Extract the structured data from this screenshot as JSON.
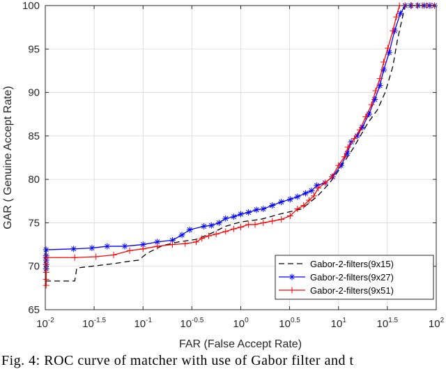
{
  "chart_data": {
    "type": "line",
    "title": "",
    "xlabel": "FAR (False Accept Rate)",
    "ylabel": "GAR ( Genuine Accept Rate)",
    "xscale": "log",
    "xlim": [
      0.01,
      100
    ],
    "ylim": [
      65,
      100
    ],
    "grid": true,
    "legend_position": "bottom-right",
    "x_ticks": [
      {
        "value": 0.01,
        "base": "10",
        "exp": "-2"
      },
      {
        "value": 0.0316,
        "base": "10",
        "exp": "-1.5"
      },
      {
        "value": 0.1,
        "base": "10",
        "exp": "-1"
      },
      {
        "value": 0.316,
        "base": "10",
        "exp": "-0.5"
      },
      {
        "value": 1,
        "base": "10",
        "exp": "0"
      },
      {
        "value": 3.16,
        "base": "10",
        "exp": "0.5"
      },
      {
        "value": 10,
        "base": "10",
        "exp": "1"
      },
      {
        "value": 31.6,
        "base": "10",
        "exp": "1.5"
      },
      {
        "value": 100,
        "base": "10",
        "exp": "2"
      }
    ],
    "y_ticks": [
      "65",
      "70",
      "75",
      "80",
      "85",
      "90",
      "95",
      "100"
    ],
    "series": [
      {
        "name": "Gabor-2-filters(9x15)",
        "color": "#000000",
        "style": "dashed",
        "marker": "none",
        "points": [
          [
            0.01,
            68.3
          ],
          [
            0.02,
            68.3
          ],
          [
            0.021,
            69.8
          ],
          [
            0.05,
            70.3
          ],
          [
            0.075,
            70.6
          ],
          [
            0.09,
            70.7
          ],
          [
            0.11,
            71.5
          ],
          [
            0.16,
            72.4
          ],
          [
            0.23,
            72.8
          ],
          [
            0.35,
            73.1
          ],
          [
            0.5,
            73.8
          ],
          [
            0.7,
            74.6
          ],
          [
            1.0,
            75.1
          ],
          [
            1.6,
            75.4
          ],
          [
            2.5,
            76.0
          ],
          [
            4.2,
            76.6
          ],
          [
            6.0,
            78.0
          ],
          [
            8.0,
            79.5
          ],
          [
            10.0,
            81.0
          ],
          [
            14.0,
            83.5
          ],
          [
            20.0,
            86.5
          ],
          [
            25.0,
            88.0
          ],
          [
            30.0,
            90.0
          ],
          [
            36.0,
            93.0
          ],
          [
            40.0,
            96.0
          ],
          [
            48.0,
            100.0
          ],
          [
            100.0,
            100.0
          ]
        ]
      },
      {
        "name": "Gabor-2-filters(9x27)",
        "color": "#0000ff",
        "style": "solid",
        "marker": "star",
        "points": [
          [
            0.0102,
            69.7
          ],
          [
            0.0102,
            70.2
          ],
          [
            0.0102,
            70.7
          ],
          [
            0.0102,
            71.2
          ],
          [
            0.0102,
            71.9
          ],
          [
            0.0195,
            72.0
          ],
          [
            0.03,
            72.1
          ],
          [
            0.043,
            72.3
          ],
          [
            0.065,
            72.3
          ],
          [
            0.1,
            72.5
          ],
          [
            0.14,
            72.8
          ],
          [
            0.2,
            73.0
          ],
          [
            0.25,
            73.6
          ],
          [
            0.3,
            74.2
          ],
          [
            0.42,
            74.6
          ],
          [
            0.5,
            74.7
          ],
          [
            0.6,
            75.0
          ],
          [
            0.7,
            75.5
          ],
          [
            0.85,
            75.7
          ],
          [
            1.0,
            76.0
          ],
          [
            1.2,
            76.2
          ],
          [
            1.45,
            76.5
          ],
          [
            1.7,
            76.6
          ],
          [
            2.1,
            77.0
          ],
          [
            2.6,
            77.4
          ],
          [
            3.2,
            77.7
          ],
          [
            3.8,
            78.0
          ],
          [
            4.6,
            78.4
          ],
          [
            5.3,
            78.7
          ],
          [
            6.0,
            79.3
          ],
          [
            7.3,
            79.6
          ],
          [
            8.7,
            80.3
          ],
          [
            10.6,
            81.6
          ],
          [
            12.3,
            83.0
          ],
          [
            13.5,
            84.3
          ],
          [
            15.5,
            85.0
          ],
          [
            17.5,
            86.0
          ],
          [
            20.5,
            87.5
          ],
          [
            23.5,
            89.2
          ],
          [
            26.5,
            90.8
          ],
          [
            29.0,
            92.6
          ],
          [
            33.0,
            94.6
          ],
          [
            37.5,
            97.1
          ],
          [
            43.0,
            99.1
          ],
          [
            48.0,
            100.0
          ],
          [
            55.0,
            100.0
          ],
          [
            65.0,
            100.0
          ],
          [
            75.0,
            100.0
          ],
          [
            85.0,
            100.0
          ],
          [
            96.0,
            100.0
          ]
        ]
      },
      {
        "name": "Gabor-2-filters(9x51)",
        "color": "#ff0000",
        "style": "solid",
        "marker": "plus",
        "points": [
          [
            0.0102,
            67.8
          ],
          [
            0.0102,
            68.5
          ],
          [
            0.0102,
            69.3
          ],
          [
            0.0102,
            70.2
          ],
          [
            0.0102,
            71.0
          ],
          [
            0.02,
            71.0
          ],
          [
            0.033,
            71.1
          ],
          [
            0.05,
            71.3
          ],
          [
            0.073,
            71.8
          ],
          [
            0.1,
            72.0
          ],
          [
            0.14,
            72.3
          ],
          [
            0.2,
            72.5
          ],
          [
            0.27,
            72.6
          ],
          [
            0.35,
            72.8
          ],
          [
            0.4,
            73.2
          ],
          [
            0.47,
            73.5
          ],
          [
            0.56,
            73.7
          ],
          [
            0.7,
            74.0
          ],
          [
            0.85,
            74.3
          ],
          [
            1.0,
            74.5
          ],
          [
            1.2,
            74.8
          ],
          [
            1.4,
            74.8
          ],
          [
            1.7,
            75.0
          ],
          [
            2.1,
            75.2
          ],
          [
            2.6,
            75.4
          ],
          [
            3.2,
            75.8
          ],
          [
            3.8,
            76.6
          ],
          [
            4.4,
            77.0
          ],
          [
            5.0,
            77.6
          ],
          [
            5.6,
            78.1
          ],
          [
            6.2,
            79.0
          ],
          [
            7.3,
            79.6
          ],
          [
            8.6,
            80.3
          ],
          [
            10.0,
            81.6
          ],
          [
            11.5,
            82.6
          ],
          [
            12.5,
            83.7
          ],
          [
            14.5,
            84.7
          ],
          [
            16.5,
            85.7
          ],
          [
            19.0,
            87.2
          ],
          [
            21.8,
            88.6
          ],
          [
            24.0,
            90.2
          ],
          [
            26.5,
            91.6
          ],
          [
            29.0,
            93.5
          ],
          [
            32.0,
            95.1
          ],
          [
            36.0,
            97.1
          ],
          [
            39.0,
            98.7
          ],
          [
            42.0,
            100.0
          ],
          [
            48.0,
            100.0
          ],
          [
            56.0,
            100.0
          ],
          [
            64.0,
            100.0
          ],
          [
            72.0,
            100.0
          ],
          [
            80.0,
            100.0
          ],
          [
            88.0,
            100.0
          ],
          [
            96.0,
            100.0
          ]
        ]
      }
    ]
  },
  "caption": "Fig. 4: ROC curve of matcher with use of Gabor filter and t"
}
